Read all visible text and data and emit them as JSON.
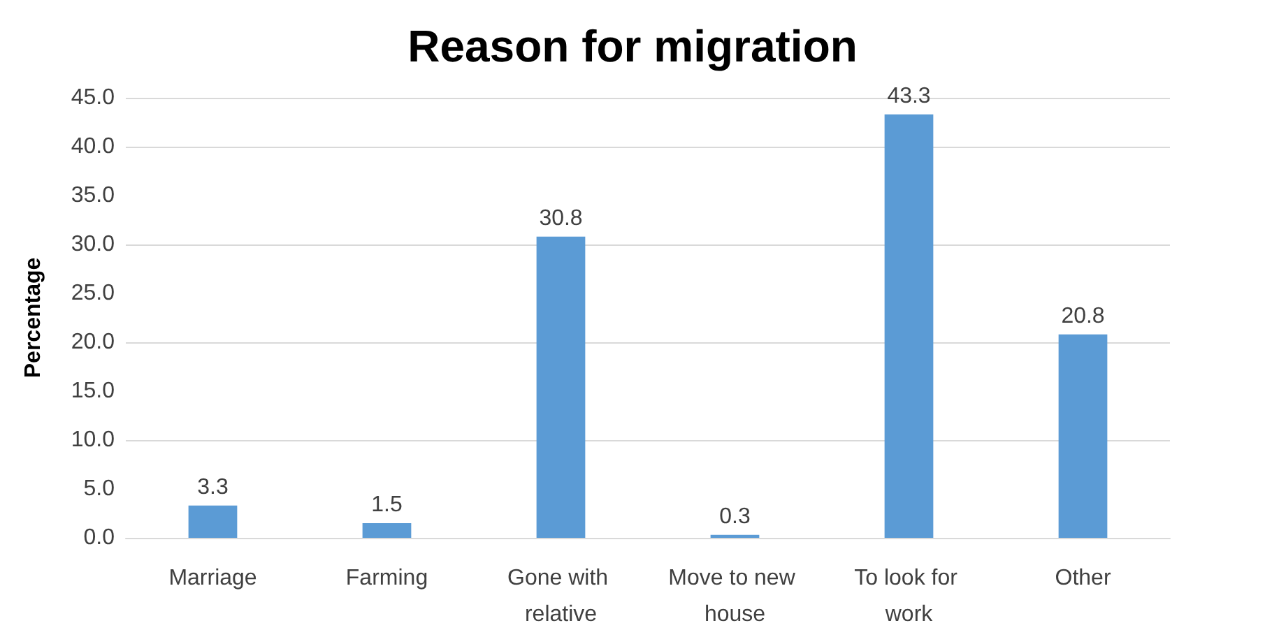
{
  "chart_data": {
    "type": "bar",
    "title": "Reason for migration",
    "ylabel": "Percentage",
    "categories": [
      "Marriage",
      "Farming",
      "Gone with relative",
      "Move to new house",
      "To look for work",
      "Other"
    ],
    "values": [
      3.3,
      1.5,
      30.8,
      0.3,
      43.3,
      20.8
    ],
    "color": "#5b9bd5",
    "ylim": [
      0,
      45
    ],
    "yticks": [
      {
        "value": 0,
        "label": "0.0"
      },
      {
        "value": 5,
        "label": "5.0"
      },
      {
        "value": 10,
        "label": "10.0"
      },
      {
        "value": 15,
        "label": "15.0"
      },
      {
        "value": 20,
        "label": "20.0"
      },
      {
        "value": 25,
        "label": "25.0"
      },
      {
        "value": 30,
        "label": "30.0"
      },
      {
        "value": 35,
        "label": "35.0"
      },
      {
        "value": 40,
        "label": "40.0"
      },
      {
        "value": 45,
        "label": "45.0"
      }
    ],
    "grid": "y",
    "data_labels": true
  }
}
